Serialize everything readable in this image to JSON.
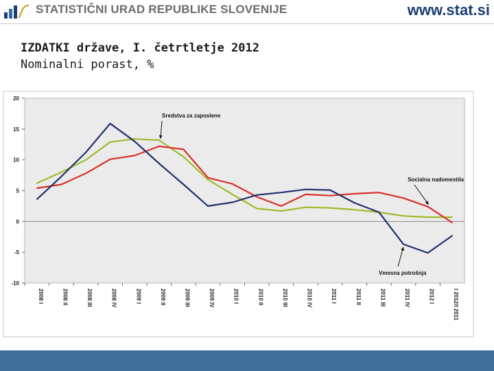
{
  "header": {
    "org_name": "STATISTIČNI URAD REPUBLIKE SLOVENIJE",
    "website": "www.stat.si",
    "logo_icon": "sors-logo-icon"
  },
  "slide": {
    "title": "IZDATKI države, I. četrtletje 2012",
    "subtitle": "Nominalni porast, %"
  },
  "chart_data": {
    "type": "line",
    "title": "",
    "xlabel": "",
    "ylabel": "",
    "ylim": [
      -10,
      20
    ],
    "yticks": [
      "20",
      "15",
      "10",
      "5",
      "0",
      "-5",
      "-10"
    ],
    "ytick_values": [
      20,
      15,
      10,
      5,
      0,
      -5,
      -10
    ],
    "grid": false,
    "legend": "none (series labelled by annotations)",
    "categories": [
      "2008 I",
      "2008 II",
      "2008 III",
      "2008 IV",
      "2009 I",
      "2009 II",
      "2009 III",
      "2009 IV",
      "2010 I",
      "2010 II",
      "2010 III",
      "2010 IV",
      "2011 I",
      "2011 II",
      "2011 III",
      "2011 IV",
      "2012 I",
      "I 2012/I 2011"
    ],
    "series": [
      {
        "name": "Sredstva za zaposlene",
        "color": "#9dbb2c",
        "values": [
          6.2,
          8.0,
          10.0,
          12.9,
          13.4,
          13.2,
          10.5,
          6.8,
          4.4,
          2.1,
          1.7,
          2.3,
          2.2,
          1.9,
          1.5,
          0.9,
          0.7,
          0.7
        ]
      },
      {
        "name": "Socialna nadomestila",
        "color": "#d73027",
        "values": [
          5.4,
          6.0,
          7.8,
          10.1,
          10.7,
          12.2,
          11.7,
          7.1,
          6.1,
          4.0,
          2.5,
          4.4,
          4.2,
          4.5,
          4.7,
          3.8,
          2.4,
          -0.2
        ]
      },
      {
        "name": "Vmesna potrošnja",
        "color": "#1f2f6e",
        "values": [
          3.6,
          7.3,
          11.2,
          15.9,
          13.0,
          9.4,
          6.0,
          2.5,
          3.1,
          4.3,
          4.7,
          5.2,
          5.1,
          3.0,
          1.5,
          -3.7,
          -5.1,
          -2.3
        ]
      }
    ],
    "annotations": [
      {
        "text": "Sredstva za zaposlene",
        "series": "Sredstva za zaposlene"
      },
      {
        "text": "Socialna nadomestila",
        "series": "Socialna nadomestila"
      },
      {
        "text": "Vmesna potrošnja",
        "series": "Vmesna potrošnja"
      }
    ]
  }
}
